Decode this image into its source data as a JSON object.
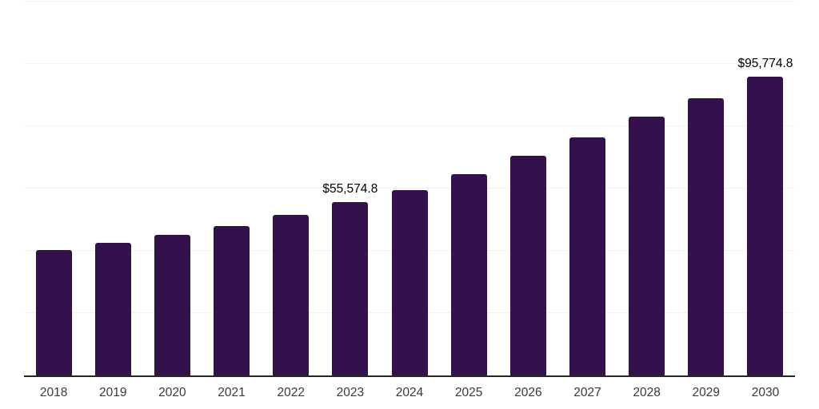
{
  "colors": {
    "background": "#ffffff",
    "bar": "#32114d",
    "axis": "#262626",
    "gridline": "#f2f2f2",
    "value_label": "#000000",
    "tick_label": "#3a3a3a"
  },
  "chart_data": {
    "type": "bar",
    "title": "",
    "xlabel": "",
    "ylabel": "",
    "categories": [
      "2018",
      "2019",
      "2020",
      "2021",
      "2022",
      "2023",
      "2024",
      "2025",
      "2026",
      "2027",
      "2028",
      "2029",
      "2030"
    ],
    "values": [
      40300,
      42600,
      45200,
      48000,
      51600,
      55574.8,
      59600,
      64700,
      70400,
      76300,
      83200,
      89100,
      95774.8
    ],
    "point_labels": {
      "2023": "$55,574.8",
      "2030": "$95,774.8"
    },
    "ylim": [
      0,
      120000
    ],
    "gridline_step": 20000,
    "grid": "horizontal",
    "legend": "none",
    "y_axis_labels_visible": false
  }
}
